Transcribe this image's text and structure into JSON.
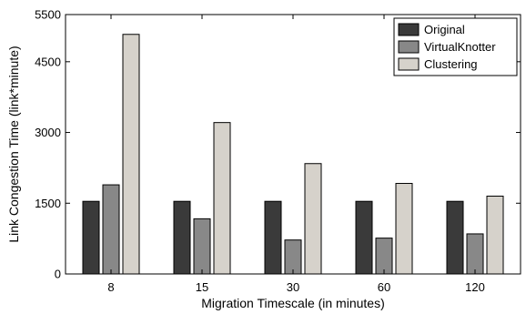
{
  "chart_data": {
    "type": "bar",
    "title": "",
    "xlabel": "Migration Timescale (in minutes)",
    "ylabel": "Link Congestion Time (link*minute)",
    "categories": [
      "8",
      "15",
      "30",
      "60",
      "120"
    ],
    "ylim": [
      0,
      5500
    ],
    "yticks": [
      0,
      1500,
      3000,
      4500,
      5500
    ],
    "ytick_labels": [
      "0",
      "1500",
      "3000",
      "4500",
      "5500"
    ],
    "grid": false,
    "legend_position": "top-right",
    "series": [
      {
        "name": "Original",
        "color": "#3a3a3a",
        "values": [
          1540,
          1540,
          1540,
          1540,
          1540
        ]
      },
      {
        "name": "VirtualKnotter",
        "color": "#888888",
        "values": [
          1890,
          1170,
          720,
          760,
          850
        ]
      },
      {
        "name": "Clustering",
        "color": "#d6d2cb",
        "values": [
          5080,
          3210,
          2340,
          1920,
          1650
        ]
      }
    ]
  }
}
